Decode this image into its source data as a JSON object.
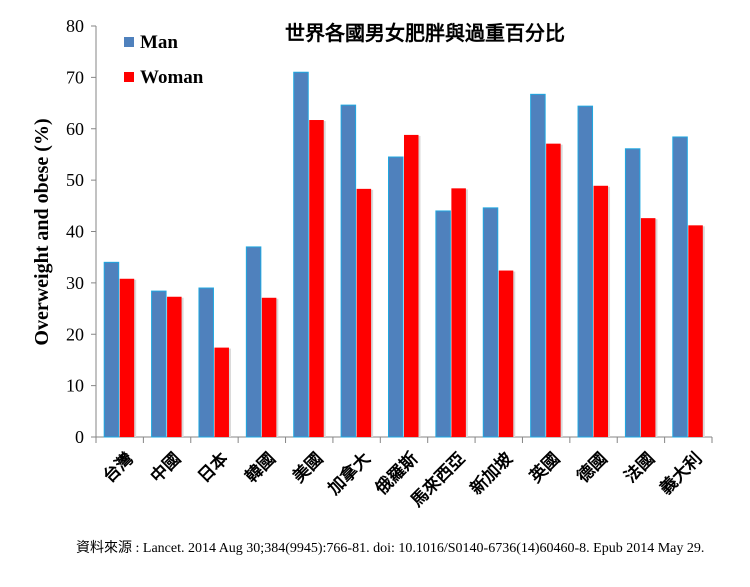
{
  "chart_data": {
    "type": "bar",
    "title": "世界各國男女肥胖與過重百分比",
    "xlabel": "",
    "ylabel": "Overweight and obese (%)",
    "ylim": [
      0,
      80
    ],
    "yticks": [
      0,
      10,
      20,
      30,
      40,
      50,
      60,
      70,
      80
    ],
    "grid": false,
    "legend_position": "top-left",
    "categories": [
      "台灣",
      "中國",
      "日本",
      "韓國",
      "美國",
      "加拿大",
      "俄羅斯",
      "馬來西亞",
      "新加坡",
      "英國",
      "德國",
      "法國",
      "義大利"
    ],
    "series": [
      {
        "name": "Man",
        "color": "#4F81BD",
        "values": [
          34.0,
          28.4,
          29.0,
          37.0,
          71.0,
          64.6,
          54.5,
          44.0,
          44.6,
          66.7,
          64.4,
          56.1,
          58.4
        ]
      },
      {
        "name": "Woman",
        "color": "#FF0000",
        "values": [
          30.8,
          27.3,
          17.4,
          27.1,
          61.7,
          48.3,
          58.8,
          48.4,
          32.4,
          57.1,
          48.9,
          42.6,
          41.2
        ]
      }
    ]
  },
  "source_note": "資料來源 : Lancet. 2014 Aug 30;384(9945):766-81. doi: 10.1016/S0140-6736(14)60460-8. Epub 2014 May 29."
}
